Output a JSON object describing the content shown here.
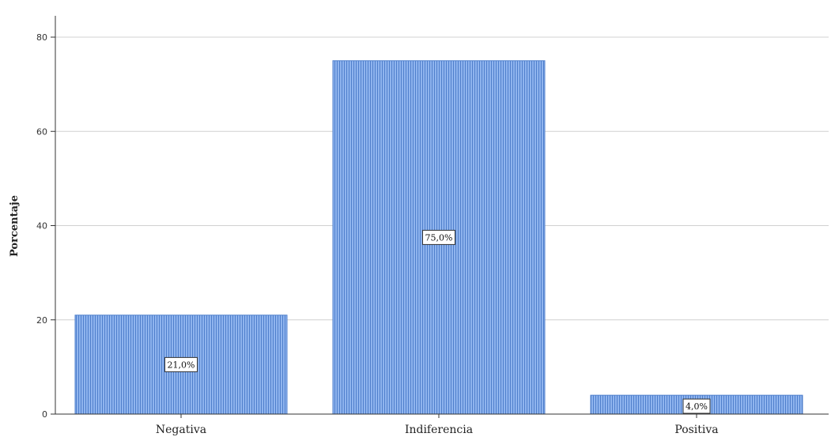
{
  "chart_data": {
    "type": "bar",
    "categories": [
      "Negativa",
      "Indiferencia",
      "Positiva"
    ],
    "values": [
      21.0,
      75.0,
      4.0
    ],
    "data_labels": [
      "21,0%",
      "75,0%",
      "4,0%"
    ],
    "title": "",
    "xlabel": "",
    "ylabel": "Porcentaje",
    "yticks": [
      0,
      20,
      40,
      60,
      80
    ],
    "ytick_labels": [
      "0",
      "20",
      "40",
      "60",
      "80"
    ],
    "ylim": [
      0,
      84
    ],
    "grid": true,
    "bar_color": "#6f9fe6",
    "bar_stroke": "#4f7fcc"
  }
}
